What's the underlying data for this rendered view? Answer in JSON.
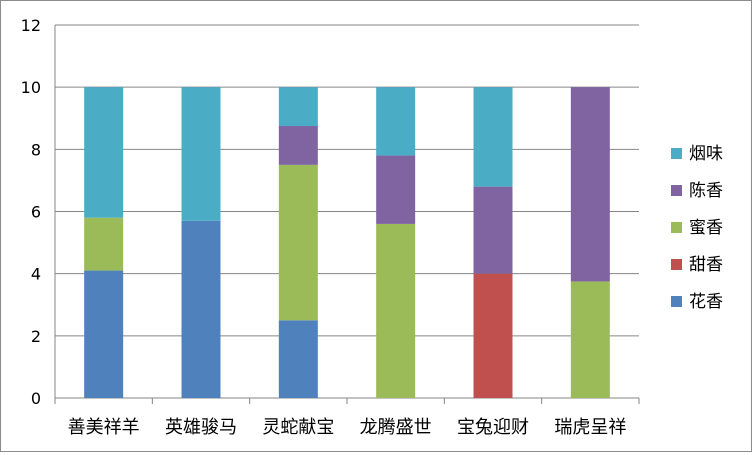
{
  "chart_data": {
    "type": "bar",
    "stacked": true,
    "title": "",
    "xlabel": "",
    "ylabel": "",
    "ylim": [
      0,
      12
    ],
    "yticks": [
      0,
      2,
      4,
      6,
      8,
      10,
      12
    ],
    "grid": true,
    "legend_position": "right",
    "categories": [
      "善美祥羊",
      "英雄骏马",
      "灵蛇献宝",
      "龙腾盛世",
      "宝兔迎财",
      "瑞虎呈祥"
    ],
    "series": [
      {
        "name": "花香",
        "color": "#4f81bd",
        "values": [
          4.1,
          5.7,
          2.5,
          0,
          0,
          0
        ]
      },
      {
        "name": "甜香",
        "color": "#c0504d",
        "values": [
          0,
          0,
          0,
          0,
          4.0,
          0
        ]
      },
      {
        "name": "蜜香",
        "color": "#9bbb59",
        "values": [
          1.7,
          0,
          5.0,
          5.6,
          0,
          3.75
        ]
      },
      {
        "name": "陈香",
        "color": "#8064a2",
        "values": [
          0,
          0,
          1.25,
          2.2,
          2.8,
          6.25
        ]
      },
      {
        "name": "烟味",
        "color": "#4bacc6",
        "values": [
          4.2,
          4.3,
          1.25,
          2.2,
          3.2,
          0
        ]
      }
    ]
  }
}
